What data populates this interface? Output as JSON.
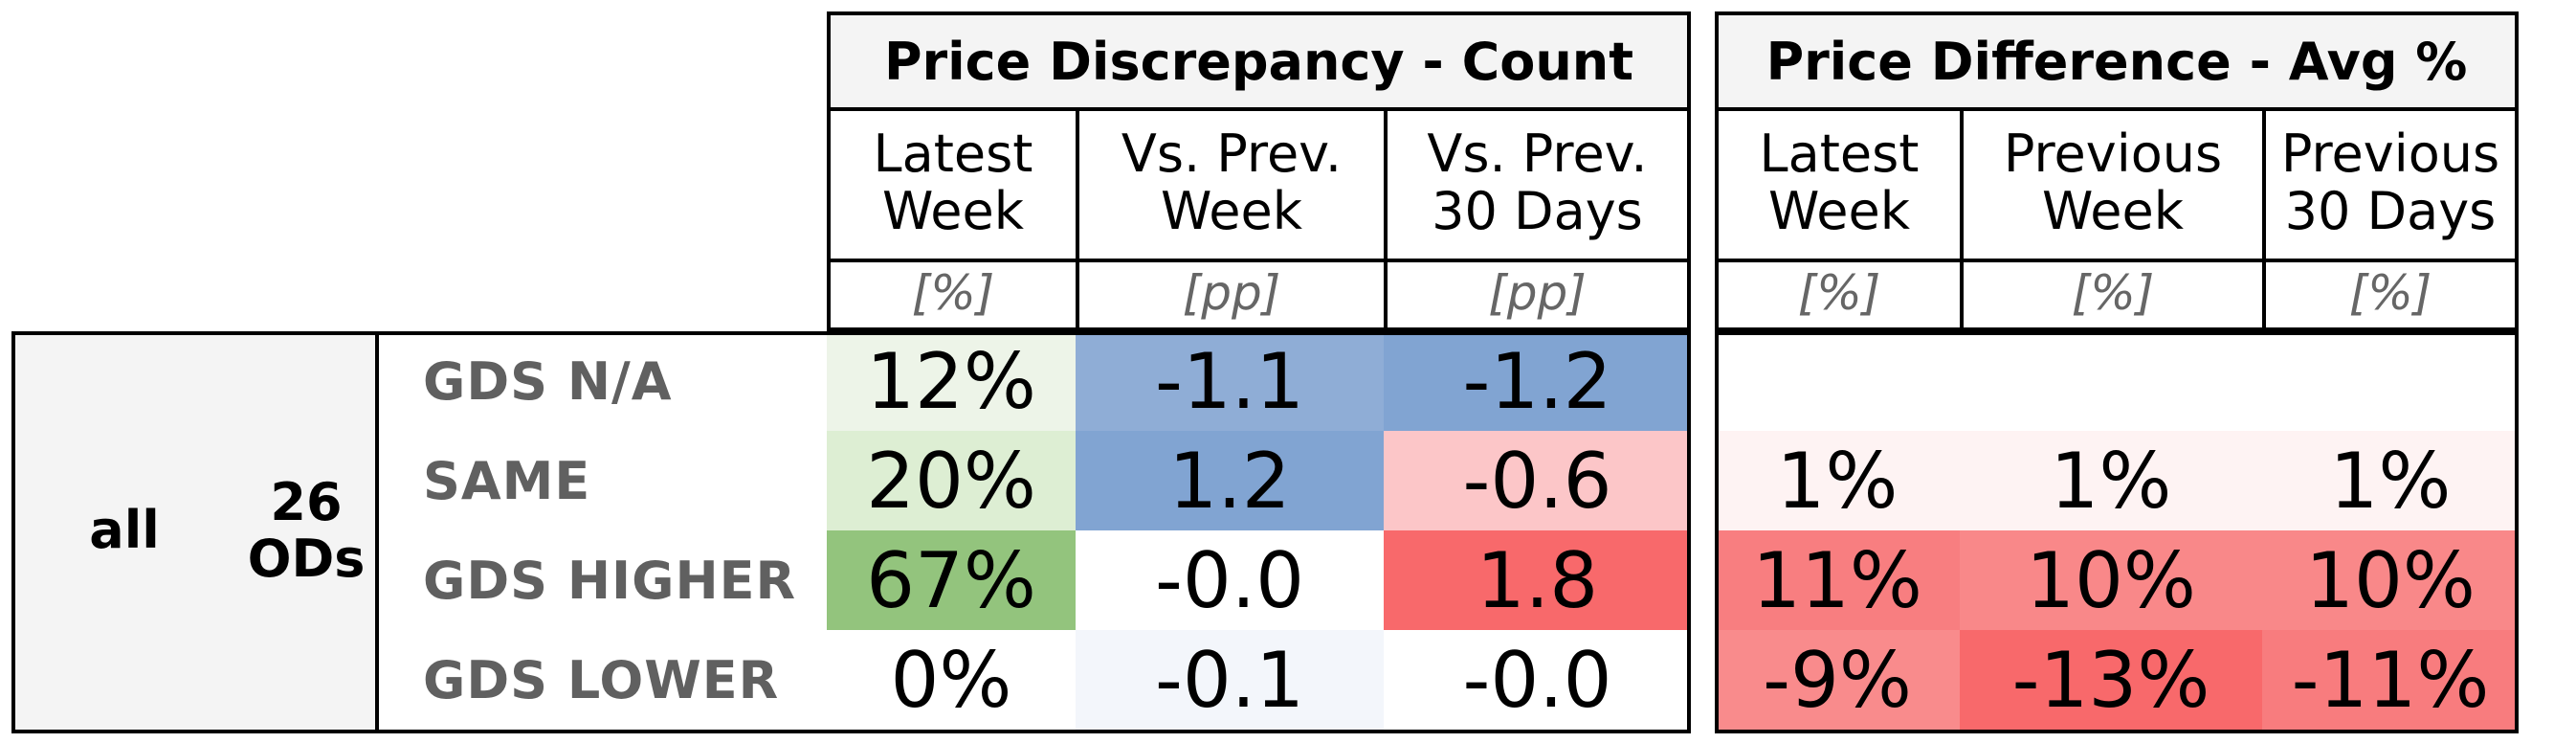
{
  "chart_data": {
    "type": "table",
    "sections": [
      {
        "title": "Price Discrepancy - Count",
        "columns": [
          {
            "label": "Latest\nWeek",
            "unit": "[%]"
          },
          {
            "label": "Vs. Prev.\nWeek",
            "unit": "[pp]"
          },
          {
            "label": "Vs. Prev.\n30 Days",
            "unit": "[pp]"
          }
        ]
      },
      {
        "title": "Price Difference - Avg %",
        "columns": [
          {
            "label": "Latest\nWeek",
            "unit": "[%]"
          },
          {
            "label": "Previous\nWeek",
            "unit": "[%]"
          },
          {
            "label": "Previous\n30 Days",
            "unit": "[%]"
          }
        ]
      }
    ],
    "group": {
      "label": "all",
      "sublabel": "26\nODs"
    },
    "rows": [
      {
        "label": "GDS N/A",
        "values": [
          "12%",
          "-1.1",
          "-1.2",
          "",
          "",
          ""
        ],
        "colors": [
          "#edf4e8",
          "#8fadd6",
          "#81a4d2",
          "#ffffff",
          "#ffffff",
          "#ffffff"
        ]
      },
      {
        "label": "SAME",
        "values": [
          "20%",
          "1.2",
          "-0.6",
          "1%",
          "1%",
          "1%"
        ],
        "colors": [
          "#ddeed3",
          "#81a4d2",
          "#fcc6c8",
          "#fef3f3",
          "#fef3f3",
          "#fef3f3"
        ]
      },
      {
        "label": "GDS HIGHER",
        "values": [
          "67%",
          "-0.0",
          "1.8",
          "11%",
          "10%",
          "10%"
        ],
        "colors": [
          "#93c47d",
          "#ffffff",
          "#f8696b",
          "#f87e80",
          "#f98889",
          "#f98889"
        ]
      },
      {
        "label": "GDS LOWER",
        "values": [
          "0%",
          "-0.1",
          "-0.0",
          "-9%",
          "-13%",
          "-11%"
        ],
        "colors": [
          "#ffffff",
          "#f3f6fb",
          "#ffffff",
          "#f98b8c",
          "#f8696b",
          "#f87c7e"
        ]
      }
    ]
  }
}
